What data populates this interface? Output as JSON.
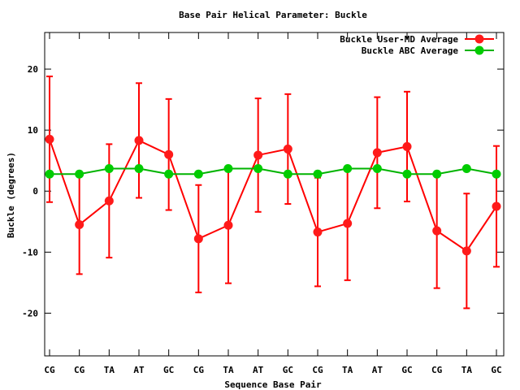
{
  "chart_data": {
    "type": "line",
    "title": "Base Pair Helical Parameter: Buckle",
    "xlabel": "Sequence Base Pair",
    "ylabel": "Buckle (degrees)",
    "categories": [
      "CG",
      "CG",
      "TA",
      "AT",
      "GC",
      "CG",
      "TA",
      "AT",
      "GC",
      "CG",
      "TA",
      "AT",
      "GC",
      "CG",
      "TA",
      "GC"
    ],
    "ylim": [
      -27,
      26
    ],
    "yticks": [
      -20,
      -10,
      0,
      10,
      20
    ],
    "grid": false,
    "legend_position": "top-right",
    "series": [
      {
        "name": "Buckle User-MD Average",
        "color": "#ff0000",
        "marker_fill": "#ff1a1a",
        "values": [
          8.5,
          -5.5,
          -1.6,
          8.3,
          6.0,
          -7.8,
          -5.6,
          5.9,
          6.9,
          -6.7,
          -5.3,
          6.3,
          7.3,
          -6.5,
          -9.8,
          -2.5
        ],
        "error": [
          10.3,
          8.1,
          9.3,
          9.4,
          9.1,
          8.8,
          9.5,
          9.3,
          9.0,
          8.9,
          9.3,
          9.1,
          9.0,
          9.4,
          9.4,
          9.9
        ]
      },
      {
        "name": "Buckle ABC Average",
        "color": "#00b300",
        "marker_fill": "#00cc00",
        "values": [
          2.8,
          2.8,
          3.7,
          3.7,
          2.8,
          2.8,
          3.7,
          3.7,
          2.8,
          2.8,
          3.7,
          3.7,
          2.8,
          2.8,
          3.7,
          2.8
        ]
      }
    ]
  }
}
